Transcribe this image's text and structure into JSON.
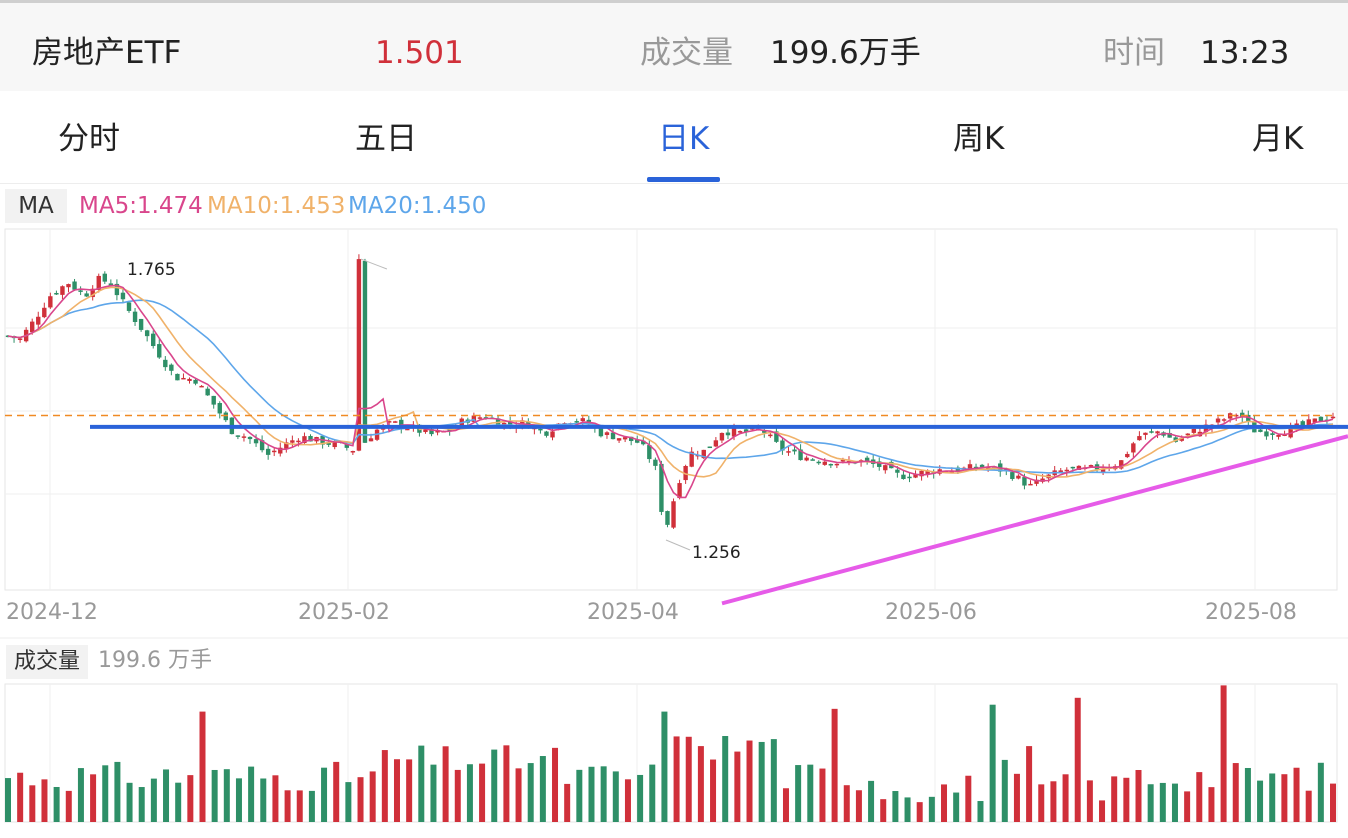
{
  "quote": {
    "name": "房地产ETF",
    "price": "1.501",
    "volume_label": "成交量",
    "volume_value": "199.6万手",
    "time_label": "时间",
    "time_value": "13:23"
  },
  "tabs": [
    {
      "label": "分时",
      "active": false
    },
    {
      "label": "五日",
      "active": false
    },
    {
      "label": "日K",
      "active": true
    },
    {
      "label": "周K",
      "active": false
    },
    {
      "label": "月K",
      "active": false
    }
  ],
  "ma": {
    "label": "MA",
    "ma5": "MA5:1.474",
    "ma10": "MA10:1.453",
    "ma20": "MA20:1.450"
  },
  "colors": {
    "up": "#d0303a",
    "down": "#2e8f67",
    "ma5": "#d9468c",
    "ma10": "#f0b26a",
    "ma20": "#5ea6ea",
    "accent": "#2a63d9",
    "ref_dashed": "#f08a24",
    "support_line": "#e65be8"
  },
  "chart_data": {
    "type": "candlestick",
    "y_range": [
      1.24,
      1.78
    ],
    "x_ticks": [
      "2024-12",
      "2025-02",
      "2025-04",
      "2025-06",
      "2025-08"
    ],
    "annotations": {
      "high": "1.765",
      "low": "1.256"
    },
    "reference_price": 1.501,
    "horizontal_resistance": 1.484,
    "rising_support": {
      "from": 1.22,
      "to": 1.47
    },
    "volume_panel_label": "成交量",
    "volume_panel_value": "199.6 万手"
  }
}
